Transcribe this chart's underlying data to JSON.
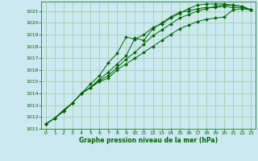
{
  "title": "Graphe pression niveau de la mer (hPa)",
  "background_color": "#cce8f0",
  "grid_color": "#99cc99",
  "line_color": "#006600",
  "marker_color": "#006600",
  "xlim": [
    -0.5,
    23.5
  ],
  "ylim": [
    1011,
    1021.8
  ],
  "yticks": [
    1011,
    1012,
    1013,
    1014,
    1015,
    1016,
    1017,
    1018,
    1019,
    1020,
    1021
  ],
  "xticks": [
    0,
    1,
    2,
    3,
    4,
    5,
    6,
    7,
    8,
    9,
    10,
    11,
    12,
    13,
    14,
    15,
    16,
    17,
    18,
    19,
    20,
    21,
    22,
    23
  ],
  "series": [
    [
      1011.4,
      1011.9,
      1012.5,
      1013.2,
      1014.0,
      1014.5,
      1015.2,
      1015.8,
      1016.5,
      1017.2,
      1018.7,
      1018.5,
      1019.5,
      1020.0,
      1020.5,
      1020.9,
      1021.0,
      1021.2,
      1021.3,
      1021.3,
      1021.4,
      1021.3,
      1021.3,
      1021.1
    ],
    [
      1011.4,
      1011.9,
      1012.6,
      1013.2,
      1014.0,
      1014.8,
      1015.5,
      1016.6,
      1017.4,
      1018.8,
      1018.6,
      1019.0,
      1019.6,
      1019.9,
      1020.4,
      1020.8,
      1021.2,
      1021.5,
      1021.6,
      1021.6,
      1021.6,
      1021.5,
      1021.4,
      1021.1
    ],
    [
      1011.4,
      1011.9,
      1012.5,
      1013.2,
      1014.0,
      1014.5,
      1015.0,
      1015.3,
      1016.0,
      1016.5,
      1017.0,
      1017.5,
      1018.0,
      1018.5,
      1019.0,
      1019.5,
      1019.8,
      1020.1,
      1020.3,
      1020.4,
      1020.5,
      1021.1,
      1021.2,
      1021.1
    ],
    [
      1011.4,
      1011.9,
      1012.5,
      1013.2,
      1014.0,
      1014.5,
      1015.1,
      1015.5,
      1016.2,
      1016.9,
      1017.5,
      1018.2,
      1018.9,
      1019.4,
      1019.9,
      1020.4,
      1020.7,
      1021.0,
      1021.2,
      1021.4,
      1021.5,
      1021.5,
      1021.4,
      1021.1
    ]
  ]
}
